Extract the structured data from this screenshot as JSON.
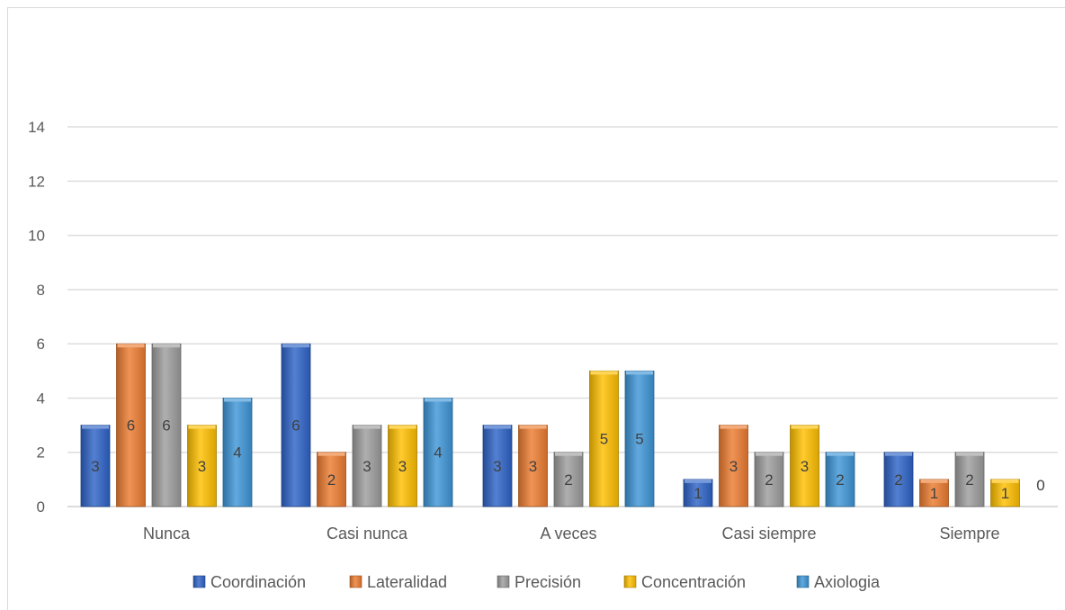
{
  "chart_data": {
    "type": "bar",
    "title": "",
    "xlabel": "",
    "ylabel": "",
    "categories": [
      "Nunca",
      "Casi nunca",
      "A veces",
      "Casi siempre",
      "Siempre"
    ],
    "series": [
      {
        "name": "Coordinación",
        "color": "#2e64c8",
        "values": [
          3,
          6,
          3,
          1,
          2
        ]
      },
      {
        "name": "Lateralidad",
        "color": "#ed7d31",
        "values": [
          6,
          2,
          3,
          3,
          1
        ]
      },
      {
        "name": "Precisión",
        "color": "#9e9e9e",
        "values": [
          6,
          3,
          2,
          2,
          2
        ]
      },
      {
        "name": "Concentración",
        "color": "#ffc000",
        "values": [
          3,
          3,
          5,
          3,
          1
        ]
      },
      {
        "name": "Axiologia",
        "color": "#3e96d8",
        "values": [
          4,
          4,
          5,
          2,
          0
        ]
      }
    ],
    "ylim": [
      0,
      14
    ],
    "yticks": [
      0,
      2,
      4,
      6,
      8,
      10,
      12,
      14
    ],
    "grid": true,
    "legend": "bottom",
    "data_labels": true
  }
}
